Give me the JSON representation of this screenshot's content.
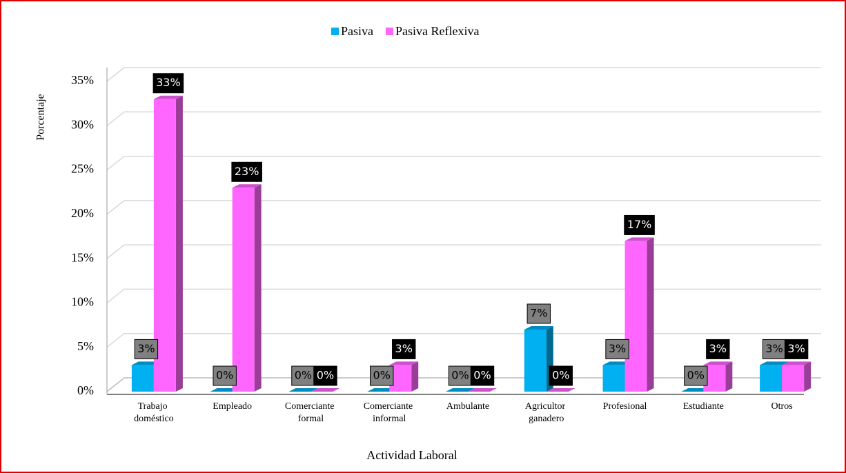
{
  "chart_data": {
    "type": "bar",
    "x_label": "Actividad Laboral",
    "y_label": "Porcentaje",
    "categories": [
      "Trabajo doméstico",
      "Empleado",
      "Comerciante formal",
      "Comerciante informal",
      "Ambulante",
      "Agricultor ganadero",
      "Profesional",
      "Estudiante",
      "Otros"
    ],
    "series": [
      {
        "name": "Pasiva",
        "color": "#00b0f0",
        "values": [
          3,
          0,
          0,
          0,
          0,
          7,
          3,
          0,
          3
        ],
        "value_labels": [
          "3%",
          "0%",
          "0%",
          "0%",
          "0%",
          "7%",
          "3%",
          "0%",
          "3%"
        ]
      },
      {
        "name": "Pasiva Reflexiva",
        "color": "#ff66ff",
        "values": [
          33,
          23,
          0,
          3,
          0,
          0,
          17,
          3,
          3
        ],
        "value_labels": [
          "33%",
          "23%",
          "0%",
          "3%",
          "0%",
          "0%",
          "17%",
          "3%",
          "3%"
        ]
      }
    ],
    "ylim": [
      0,
      35
    ],
    "yticks": [
      {
        "value": 0,
        "label": "0%"
      },
      {
        "value": 5,
        "label": "5%"
      },
      {
        "value": 10,
        "label": "10%"
      },
      {
        "value": 15,
        "label": "15%"
      },
      {
        "value": 20,
        "label": "20%"
      },
      {
        "value": 25,
        "label": "25%"
      },
      {
        "value": 30,
        "label": "30%"
      },
      {
        "value": 35,
        "label": "35%"
      }
    ],
    "grid": true,
    "legend": "top"
  }
}
